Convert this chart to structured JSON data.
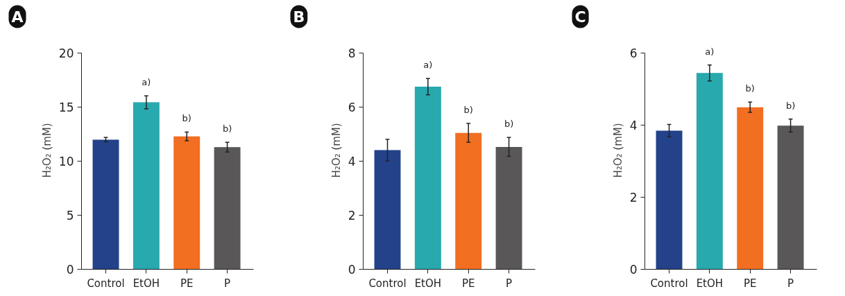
{
  "chart_data": [
    {
      "type": "bar",
      "title": "A",
      "ylabel": "H₂O₂ (mM)",
      "categories": [
        "Control",
        "EtOH",
        "PE",
        "P"
      ],
      "values": [
        12.0,
        15.45,
        12.3,
        11.3
      ],
      "errors": [
        0.2,
        0.6,
        0.4,
        0.45
      ],
      "colors": [
        "#23428a",
        "#27a9ae",
        "#f26e21",
        "#595758"
      ],
      "ylim": [
        0,
        20
      ],
      "yticks": [
        0,
        5,
        10,
        15,
        20
      ],
      "annotations": [
        {
          "text": "a)",
          "x": "EtOH",
          "y": 16.05
        },
        {
          "text": "b)",
          "x": "PE",
          "y": 12.7
        },
        {
          "text": "b)",
          "x": "P",
          "y": 11.75
        }
      ]
    },
    {
      "type": "bar",
      "title": "B",
      "ylabel": "H₂O₂ (mM)",
      "categories": [
        "Control",
        "EtOH",
        "PE",
        "P"
      ],
      "values": [
        4.41,
        6.76,
        5.05,
        4.53
      ],
      "errors": [
        0.4,
        0.3,
        0.35,
        0.35
      ],
      "colors": [
        "#23428a",
        "#27a9ae",
        "#f26e21",
        "#595758"
      ],
      "ylim": [
        0,
        8
      ],
      "yticks": [
        0,
        2,
        4,
        6,
        8
      ],
      "annotations": [
        {
          "text": "a)",
          "x": "EtOH",
          "y": 7.06
        },
        {
          "text": "b)",
          "x": "PE",
          "y": 5.4
        },
        {
          "text": "b)",
          "x": "P",
          "y": 4.88
        }
      ]
    },
    {
      "type": "bar",
      "title": "C",
      "ylabel": "H₂O₂ (mM)",
      "categories": [
        "Control",
        "EtOH",
        "PE",
        "P"
      ],
      "values": [
        3.85,
        5.45,
        4.5,
        3.99
      ],
      "errors": [
        0.17,
        0.22,
        0.14,
        0.18
      ],
      "colors": [
        "#23428a",
        "#27a9ae",
        "#f26e21",
        "#595758"
      ],
      "ylim": [
        0,
        6
      ],
      "yticks": [
        0,
        2,
        4,
        6
      ],
      "annotations": [
        {
          "text": "a)",
          "x": "EtOH",
          "y": 5.67
        },
        {
          "text": "b)",
          "x": "PE",
          "y": 4.64
        },
        {
          "text": "b)",
          "x": "P",
          "y": 4.17
        }
      ]
    }
  ]
}
